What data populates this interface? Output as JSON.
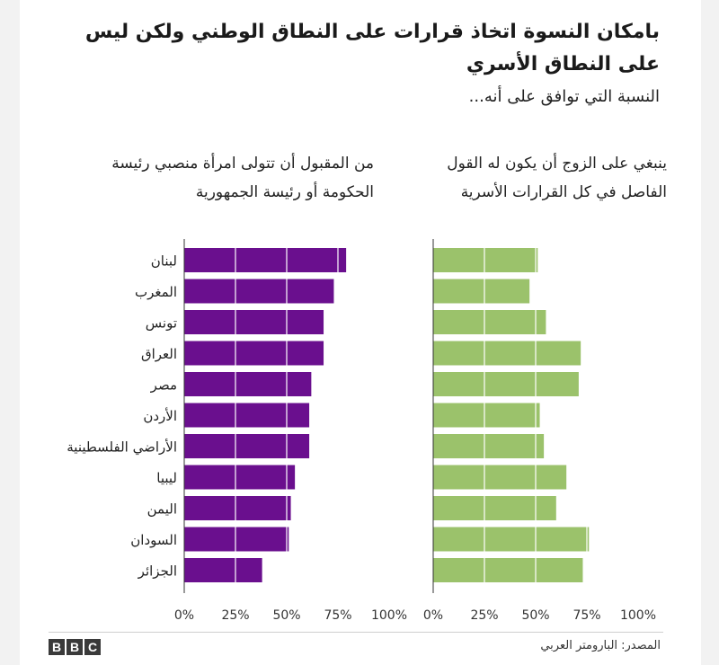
{
  "title": "بامكان النسوة اتخاذ قرارات على النطاق الوطني ولكن ليس على النطاق الأسري",
  "subtitle": "النسبة التي توافق على أنه...",
  "source": "المصدر: البارومتر العربي",
  "brand": [
    "B",
    "B",
    "C"
  ],
  "colors": {
    "purple": "#6a0f8e",
    "green": "#9bc26b",
    "grid": "#ffffff",
    "axis": "#333333"
  },
  "chart_data": [
    {
      "type": "bar",
      "orientation": "horizontal",
      "title": "من المقبول أن تتولى امرأة منصبي رئيسة الحكومة أو رئيسة الجمهورية",
      "categories": [
        "لبنان",
        "المغرب",
        "تونس",
        "العراق",
        "مصر",
        "الأردن",
        "الأراضي الفلسطينية",
        "ليبيا",
        "اليمن",
        "السودان",
        "الجزائر"
      ],
      "values": [
        79,
        73,
        68,
        68,
        62,
        61,
        61,
        54,
        52,
        51,
        38
      ],
      "xlim": [
        0,
        100
      ],
      "tick_labels": [
        "0%",
        "25%",
        "50%",
        "75%",
        "100%"
      ],
      "color": "#6a0f8e"
    },
    {
      "type": "bar",
      "orientation": "horizontal",
      "title": "ينبغي على الزوج أن يكون له القول الفاصل في كل القرارات الأسرية",
      "categories": [
        "لبنان",
        "المغرب",
        "تونس",
        "العراق",
        "مصر",
        "الأردن",
        "الأراضي الفلسطينية",
        "ليبيا",
        "اليمن",
        "السودان",
        "الجزائر"
      ],
      "values": [
        51,
        47,
        55,
        72,
        71,
        52,
        54,
        65,
        60,
        76,
        73
      ],
      "xlim": [
        0,
        100
      ],
      "tick_labels": [
        "0%",
        "25%",
        "50%",
        "75%",
        "100%"
      ],
      "color": "#9bc26b"
    }
  ]
}
